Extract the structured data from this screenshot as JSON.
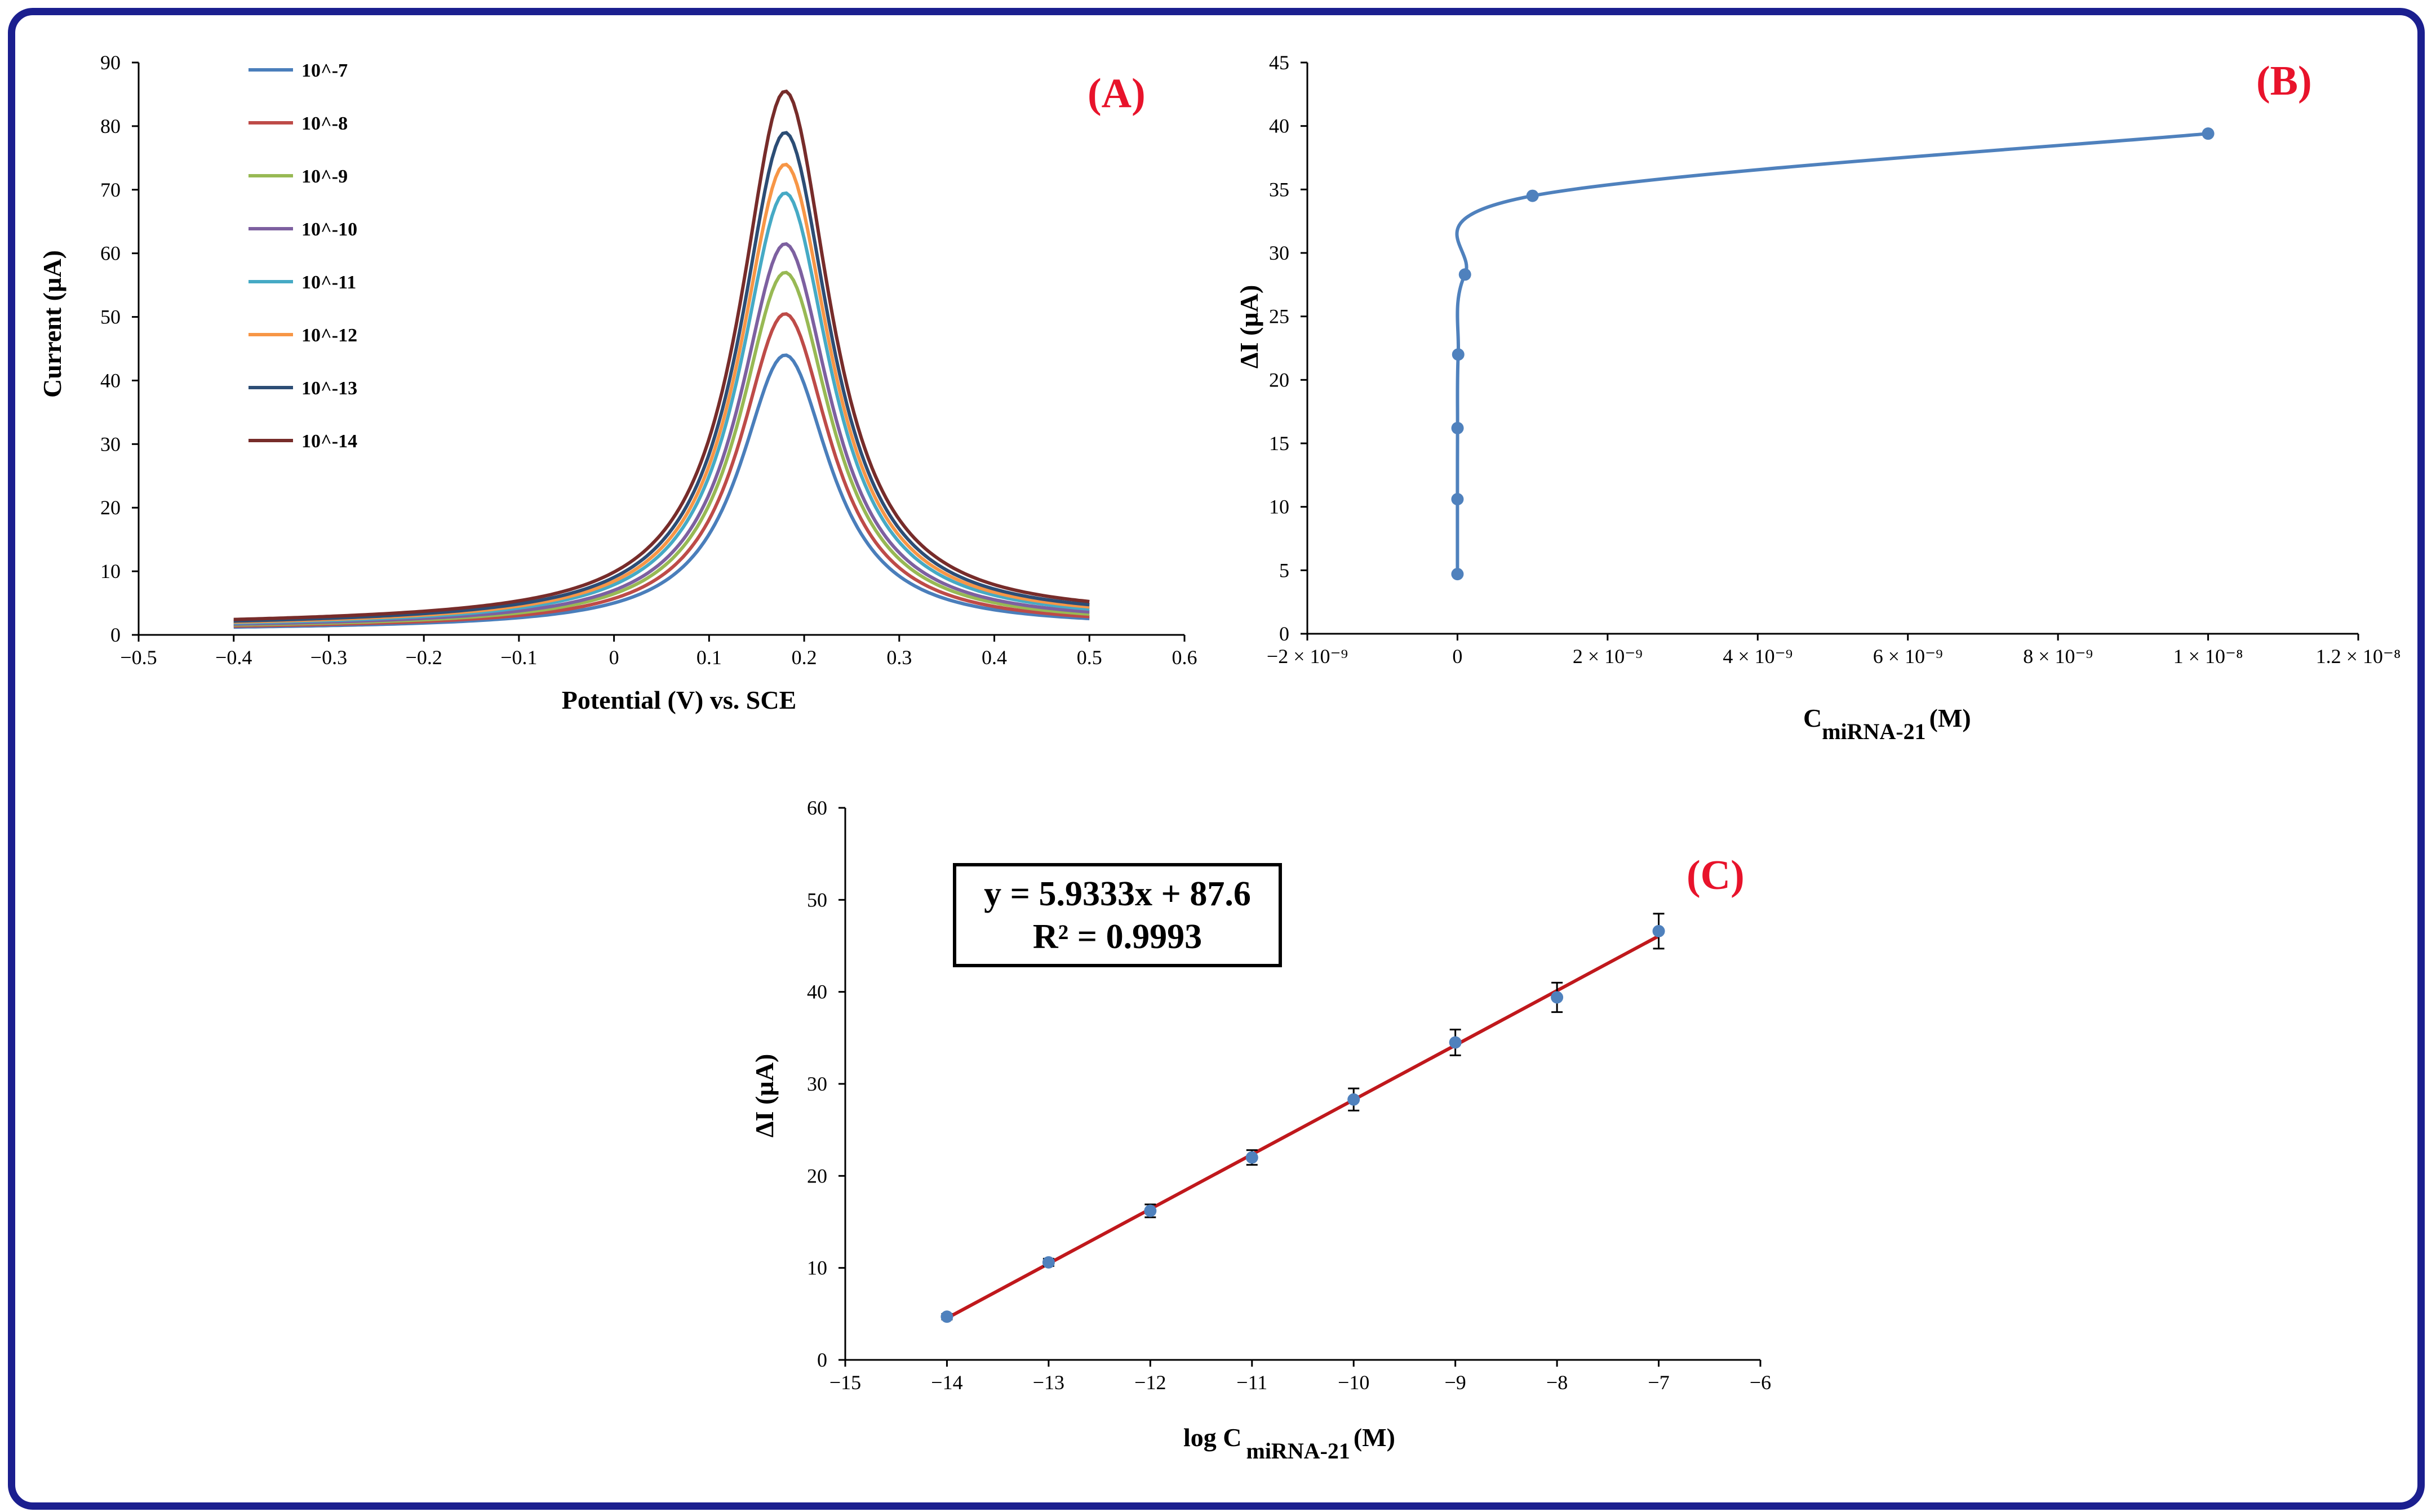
{
  "chart_data": [
    {
      "panel": "A",
      "panel_label": "(A)",
      "type": "line",
      "xlabel": "Potential (V) vs. SCE",
      "ylabel": "Current  (µA)",
      "xlim": [
        -0.5,
        0.6
      ],
      "ylim": [
        0,
        90
      ],
      "xticks": [
        -0.5,
        -0.4,
        -0.3,
        -0.2,
        -0.1,
        0,
        0.1,
        0.2,
        0.3,
        0.4,
        0.5,
        0.6
      ],
      "xtick_labels": [
        "−0.5",
        "−0.4",
        "−0.3",
        "−0.2",
        "−0.1",
        "0",
        "0.1",
        "0.2",
        "0.3",
        "0.4",
        "0.5",
        "0.6"
      ],
      "yticks": [
        0,
        10,
        20,
        30,
        40,
        50,
        60,
        70,
        80,
        90
      ],
      "ytick_labels": [
        "0",
        "10",
        "20",
        "30",
        "40",
        "50",
        "60",
        "70",
        "80",
        "90"
      ],
      "legend_position": "top-left",
      "x_range": [
        -0.4,
        0.5
      ],
      "peak_position": 0.18,
      "series": [
        {
          "name": "10^-7",
          "color": "#4a7ebb",
          "peak": 44,
          "base_left": 0.8,
          "base_right": 1.2
        },
        {
          "name": "10^-8",
          "color": "#be4b48",
          "peak": 50.5,
          "base_left": 0.9,
          "base_right": 1.3
        },
        {
          "name": "10^-9",
          "color": "#98b954",
          "peak": 57,
          "base_left": 1.0,
          "base_right": 1.5
        },
        {
          "name": "10^-10",
          "color": "#7d60a0",
          "peak": 61.5,
          "base_left": 1.1,
          "base_right": 1.7
        },
        {
          "name": "10^-11",
          "color": "#46aac5",
          "peak": 69.5,
          "base_left": 1.2,
          "base_right": 1.9
        },
        {
          "name": "10^-12",
          "color": "#f79646",
          "peak": 74,
          "base_left": 1.3,
          "base_right": 2.1
        },
        {
          "name": "10^-13",
          "color": "#2c4d75",
          "peak": 79,
          "base_left": 1.4,
          "base_right": 2.3
        },
        {
          "name": "10^-14",
          "color": "#772c2a",
          "peak": 85.5,
          "base_left": 1.6,
          "base_right": 2.6
        }
      ]
    },
    {
      "panel": "B",
      "panel_label": "(B)",
      "type": "scatter",
      "xlabel_main": "C",
      "xlabel_sub": "miRNA-21",
      "xlabel_unit": "(M)",
      "ylabel": "ΔI (µA)",
      "xlim": [
        -2e-09,
        1.2e-08
      ],
      "ylim": [
        0,
        45
      ],
      "xticks": [
        -2e-09,
        0,
        2e-09,
        4e-09,
        6e-09,
        8e-09,
        1e-08,
        1.2e-08
      ],
      "xtick_labels": [
        "−2 × 10⁻⁹",
        "0",
        "2 × 10⁻⁹",
        "4 × 10⁻⁹",
        "6 × 10⁻⁹",
        "8 × 10⁻⁹",
        "1 × 10⁻⁸",
        "1.2 × 10⁻⁸"
      ],
      "yticks": [
        0,
        5,
        10,
        15,
        20,
        25,
        30,
        35,
        40,
        45
      ],
      "ytick_labels": [
        "0",
        "5",
        "10",
        "15",
        "20",
        "25",
        "30",
        "35",
        "40",
        "45"
      ],
      "color": "#4f81bd",
      "x": [
        1e-14,
        1e-13,
        1e-12,
        1e-11,
        1e-10,
        1e-09,
        1e-08
      ],
      "y": [
        4.7,
        10.6,
        16.2,
        22.0,
        28.3,
        34.5,
        39.4
      ]
    },
    {
      "panel": "C",
      "panel_label": "(C)",
      "type": "scatter",
      "xlabel_main": "log C",
      "xlabel_sub": "miRNA-21",
      "xlabel_unit": "(M)",
      "ylabel": "ΔI (µA)",
      "xlim": [
        -15,
        -6
      ],
      "ylim": [
        0,
        60
      ],
      "xticks": [
        -15,
        -14,
        -13,
        -12,
        -11,
        -10,
        -9,
        -8,
        -7,
        -6
      ],
      "xtick_labels": [
        "−15",
        "−14",
        "−13",
        "−12",
        "−11",
        "−10",
        "−9",
        "−8",
        "−7",
        "−6"
      ],
      "yticks": [
        0,
        10,
        20,
        30,
        40,
        50,
        60
      ],
      "ytick_labels": [
        "0",
        "10",
        "20",
        "30",
        "40",
        "50",
        "60"
      ],
      "point_color": "#4f81bd",
      "fit_color": "#c0181c",
      "x": [
        -14,
        -13,
        -12,
        -11,
        -10,
        -9,
        -8,
        -7
      ],
      "y": [
        4.7,
        10.6,
        16.2,
        22.0,
        28.3,
        34.5,
        39.4,
        46.6
      ],
      "error": [
        0.3,
        0.4,
        0.7,
        0.8,
        1.2,
        1.4,
        1.6,
        1.9
      ],
      "fit": {
        "slope": 5.9333,
        "intercept": 87.6,
        "x_range": [
          -14,
          -7
        ]
      },
      "equation_line1": "y = 5.9333x + 87.6",
      "equation_line2": "R² = 0.9993"
    }
  ]
}
